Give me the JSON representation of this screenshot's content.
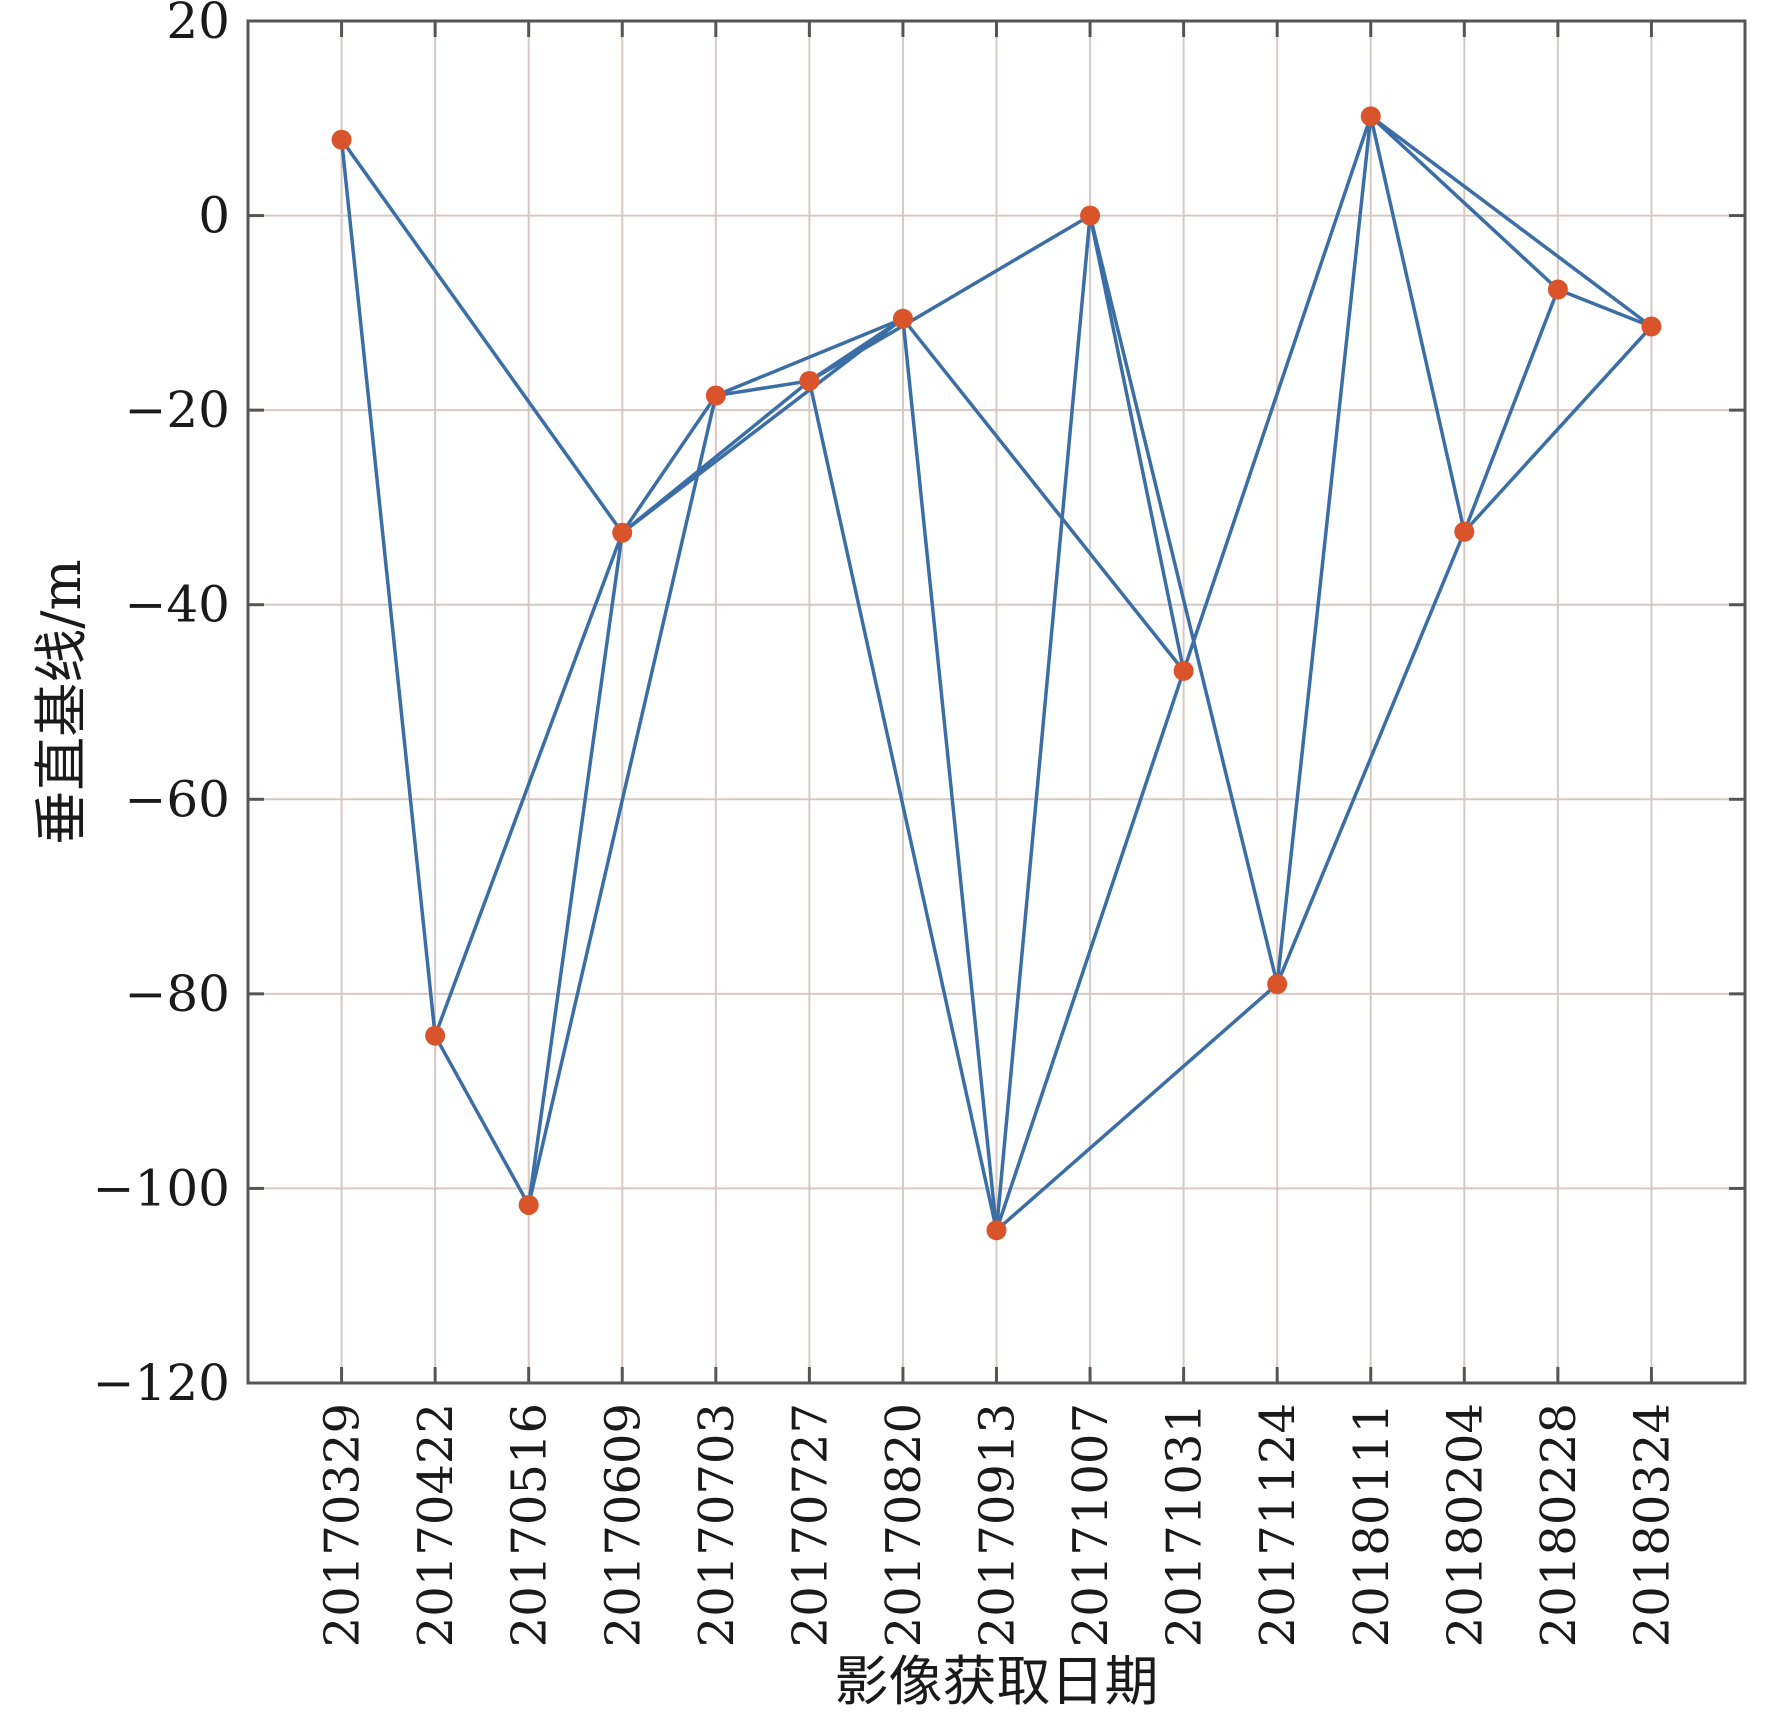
{
  "chart_data": {
    "type": "scatter",
    "xlabel": "影像获取日期",
    "ylabel": "垂直基线/m",
    "ylim": [
      -120,
      20
    ],
    "yticks": [
      "20",
      "0",
      "−20",
      "−40",
      "−60",
      "−80",
      "−100",
      "−120"
    ],
    "grid": true,
    "colors": {
      "edge": "#3b6ea5",
      "point": "#d9542b",
      "frame": "#555555",
      "grid": "#d6c9c4"
    },
    "dates": [
      "20170329",
      "20170422",
      "20170516",
      "20170609",
      "20170703",
      "20170727",
      "20170820",
      "20170913",
      "20171007",
      "20171031",
      "20171124",
      "20180111",
      "20180204",
      "20180228",
      "20180324"
    ],
    "baselines": [
      7.8,
      -84.3,
      -101.7,
      -32.6,
      -18.5,
      -17.0,
      -10.6,
      -104.3,
      0.0,
      -46.8,
      -79.0,
      10.2,
      -32.5,
      -7.6,
      -11.4
    ],
    "pairs": [
      [
        "20170329",
        "20170422"
      ],
      [
        "20170329",
        "20170609"
      ],
      [
        "20170422",
        "20170516"
      ],
      [
        "20170422",
        "20170609"
      ],
      [
        "20170516",
        "20170609"
      ],
      [
        "20170516",
        "20170703"
      ],
      [
        "20170609",
        "20170703"
      ],
      [
        "20170609",
        "20170727"
      ],
      [
        "20170609",
        "20170820"
      ],
      [
        "20170703",
        "20170727"
      ],
      [
        "20170703",
        "20170820"
      ],
      [
        "20170727",
        "20170820"
      ],
      [
        "20170727",
        "20171007"
      ],
      [
        "20170727",
        "20170913"
      ],
      [
        "20170820",
        "20170913"
      ],
      [
        "20170820",
        "20171031"
      ],
      [
        "20170913",
        "20171007"
      ],
      [
        "20170913",
        "20171031"
      ],
      [
        "20170913",
        "20171124"
      ],
      [
        "20171007",
        "20171031"
      ],
      [
        "20171007",
        "20171124"
      ],
      [
        "20171031",
        "20180111"
      ],
      [
        "20171124",
        "20180111"
      ],
      [
        "20171124",
        "20180204"
      ],
      [
        "20180111",
        "20180204"
      ],
      [
        "20180111",
        "20180228"
      ],
      [
        "20180111",
        "20180324"
      ],
      [
        "20180204",
        "20180228"
      ],
      [
        "20180204",
        "20180324"
      ],
      [
        "20180228",
        "20180324"
      ]
    ]
  }
}
